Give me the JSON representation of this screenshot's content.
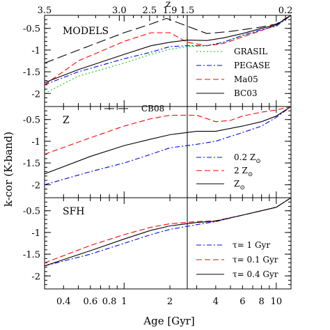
{
  "chart_data": [
    {
      "type": "line",
      "panel_label": "MODELS",
      "xlabel": "Age [Gyr]",
      "ylabel": "k-cor (K-band)",
      "top_axis_label": "z",
      "top_ticks": [
        "3.5",
        "3.0",
        "2.5",
        "1.9",
        "1.5",
        "0.2"
      ],
      "x_ticks": [
        "0.4",
        "0.6",
        "0.8",
        "1",
        "2",
        "4",
        "6",
        "8",
        "10"
      ],
      "y_ticks": [
        "-0.5",
        "-1",
        "-1.5",
        "-2"
      ],
      "xscale": "log",
      "xlim": [
        0.3,
        12.5
      ],
      "ylim": [
        -2.3,
        -0.2
      ],
      "vline_age": 2.6,
      "legend_position": "bottom-right",
      "series": [
        {
          "name": "CB08",
          "color": "#000000",
          "dash": "longdash",
          "x": [
            0.3,
            0.5,
            1.0,
            1.5,
            1.9,
            2.6,
            3.5,
            5.0,
            8.0,
            10.0,
            12.5
          ],
          "y": [
            -1.3,
            -1.0,
            -0.6,
            -0.4,
            -0.27,
            -0.45,
            -0.62,
            -0.57,
            -0.47,
            -0.4,
            -0.2
          ]
        },
        {
          "name": "GRASIL",
          "color": "#00cc00",
          "dash": "dotted",
          "x": [
            0.3,
            0.5,
            1.0,
            1.5,
            2.0,
            2.6,
            3.5,
            4.5,
            6.0,
            8.0,
            10.0,
            12.5
          ],
          "y": [
            -2.0,
            -1.6,
            -1.3,
            -1.1,
            -0.98,
            -0.92,
            -0.9,
            -0.82,
            -0.67,
            -0.54,
            -0.45,
            -0.2
          ]
        },
        {
          "name": "PEGASE",
          "color": "#0000ff",
          "dash": "dashdot",
          "x": [
            0.3,
            0.5,
            1.0,
            1.5,
            2.0,
            2.6,
            3.5,
            4.5,
            6.0,
            8.0,
            10.0,
            12.5
          ],
          "y": [
            -1.8,
            -1.5,
            -1.2,
            -1.05,
            -0.92,
            -0.9,
            -0.9,
            -0.82,
            -0.66,
            -0.53,
            -0.45,
            -0.2
          ]
        },
        {
          "name": "Ma05",
          "color": "#ff0000",
          "dash": "dashed",
          "x": [
            0.3,
            0.5,
            1.0,
            1.5,
            2.0,
            2.6,
            3.5,
            4.5,
            6.0,
            8.0,
            10.0,
            12.5
          ],
          "y": [
            -1.8,
            -1.25,
            -0.8,
            -0.6,
            -0.6,
            -0.82,
            -0.9,
            -0.85,
            -0.7,
            -0.55,
            -0.42,
            -0.2
          ]
        },
        {
          "name": "BC03",
          "color": "#000000",
          "dash": "solid",
          "x": [
            0.3,
            0.5,
            1.0,
            1.5,
            2.0,
            2.6,
            3.5,
            4.5,
            6.0,
            8.0,
            10.0,
            12.5
          ],
          "y": [
            -1.75,
            -1.45,
            -1.1,
            -0.9,
            -0.82,
            -0.77,
            -0.78,
            -0.72,
            -0.62,
            -0.5,
            -0.42,
            -0.2
          ]
        }
      ]
    },
    {
      "type": "line",
      "panel_label": "Z",
      "y_ticks": [
        "-0.5",
        "-1",
        "-1.5",
        "-2"
      ],
      "xscale": "log",
      "xlim": [
        0.3,
        12.5
      ],
      "ylim": [
        -2.3,
        -0.2
      ],
      "legend_position": "bottom-right",
      "series": [
        {
          "name": "0.2 Z",
          "suffix": "⊙",
          "color": "#0000ff",
          "dash": "dashdot",
          "x": [
            0.3,
            0.6,
            1.0,
            1.5,
            2.0,
            3.0,
            4.0,
            6.0,
            8.0,
            10.0,
            12.5
          ],
          "y": [
            -2.0,
            -1.7,
            -1.5,
            -1.3,
            -1.15,
            -1.07,
            -1.0,
            -0.8,
            -0.65,
            -0.45,
            -0.2
          ]
        },
        {
          "name": "2 Z",
          "suffix": "⊙",
          "color": "#ff0000",
          "dash": "dashed",
          "x": [
            0.3,
            0.6,
            1.0,
            1.5,
            2.0,
            3.0,
            4.0,
            5.0,
            6.0,
            8.0,
            10.0,
            12.5
          ],
          "y": [
            -1.3,
            -0.92,
            -0.65,
            -0.48,
            -0.4,
            -0.4,
            -0.55,
            -0.52,
            -0.42,
            -0.33,
            -0.28,
            -0.2
          ]
        },
        {
          "name": "Z",
          "suffix": "⊙",
          "color": "#000000",
          "dash": "solid",
          "x": [
            0.3,
            0.6,
            1.0,
            1.5,
            2.0,
            3.0,
            4.0,
            6.0,
            8.0,
            10.0,
            12.5
          ],
          "y": [
            -1.75,
            -1.35,
            -1.1,
            -0.95,
            -0.85,
            -0.77,
            -0.77,
            -0.65,
            -0.55,
            -0.42,
            -0.2
          ]
        }
      ]
    },
    {
      "type": "line",
      "panel_label": "SFH",
      "y_ticks": [
        "-0.5",
        "-1",
        "-1.5",
        "-2"
      ],
      "xscale": "log",
      "xlim": [
        0.3,
        12.5
      ],
      "ylim": [
        -2.3,
        -0.2
      ],
      "legend_position": "bottom-right",
      "series": [
        {
          "name": "τ= 1 Gyr",
          "color": "#0000ff",
          "dash": "dashdot",
          "x": [
            0.3,
            0.6,
            1.0,
            1.5,
            2.0,
            3.0,
            4.0,
            6.0,
            8.0,
            10.0,
            12.5
          ],
          "y": [
            -1.77,
            -1.5,
            -1.25,
            -1.05,
            -0.93,
            -0.82,
            -0.75,
            -0.6,
            -0.5,
            -0.42,
            -0.2
          ]
        },
        {
          "name": "τ= 0.1 Gyr",
          "color": "#ff0000",
          "dash": "dashed",
          "x": [
            0.3,
            0.6,
            1.0,
            1.5,
            2.0,
            3.0,
            4.0,
            6.0,
            8.0,
            10.0,
            12.5
          ],
          "y": [
            -1.7,
            -1.3,
            -1.05,
            -0.88,
            -0.8,
            -0.75,
            -0.73,
            -0.6,
            -0.5,
            -0.42,
            -0.2
          ]
        },
        {
          "name": "τ= 0.4 Gyr",
          "color": "#000000",
          "dash": "solid",
          "x": [
            0.3,
            0.6,
            1.0,
            1.5,
            2.0,
            3.0,
            4.0,
            6.0,
            8.0,
            10.0,
            12.5
          ],
          "y": [
            -1.77,
            -1.42,
            -1.15,
            -0.95,
            -0.85,
            -0.77,
            -0.74,
            -0.6,
            -0.5,
            -0.42,
            -0.2
          ]
        }
      ]
    }
  ]
}
